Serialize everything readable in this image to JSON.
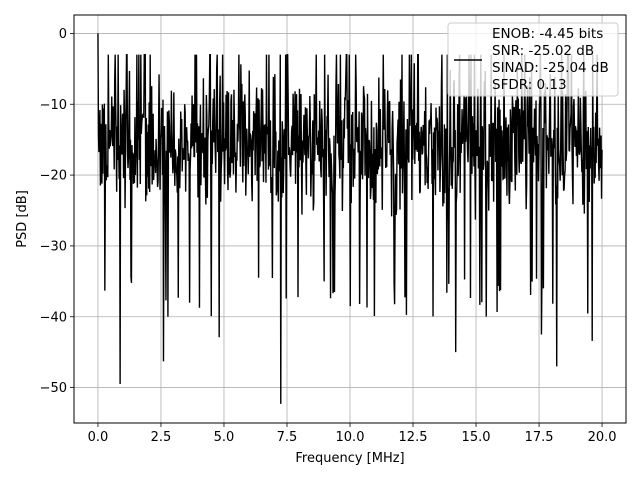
{
  "chart_data": {
    "type": "line",
    "title": "",
    "xlabel": "Frequency [MHz]",
    "ylabel": "PSD [dB]",
    "xlim": [
      -0.95,
      20.95
    ],
    "ylim": [
      -55.0,
      2.6
    ],
    "xticks": [
      0.0,
      2.5,
      5.0,
      7.5,
      10.0,
      12.5,
      15.0,
      17.5,
      20.0
    ],
    "xtick_labels": [
      "0.0",
      "2.5",
      "5.0",
      "7.5",
      "10.0",
      "12.5",
      "15.0",
      "17.5",
      "20.0"
    ],
    "yticks": [
      0,
      -10,
      -20,
      -30,
      -40,
      -50
    ],
    "ytick_labels": [
      "0",
      "−10",
      "−20",
      "−30",
      "−40",
      "−50"
    ],
    "grid": true,
    "legend_position": "top-right",
    "legend": {
      "entries": [
        "ENOB: -4.45 bits",
        "SNR: -25.02 dB",
        "SINAD: -25.04 dB",
        "SFDR: 0.13"
      ]
    },
    "series": [
      {
        "color": "#000000",
        "points_count": 1024,
        "x_range": [
          0.0,
          20.0
        ],
        "peak": {
          "x": 0.0,
          "y": 0.0
        },
        "notable_dips": [
          {
            "x": 0.88,
            "y": -49.5
          },
          {
            "x": 2.6,
            "y": -46.3
          },
          {
            "x": 4.8,
            "y": -42.9
          },
          {
            "x": 7.25,
            "y": -52.3
          },
          {
            "x": 10.0,
            "y": -38.5
          },
          {
            "x": 14.2,
            "y": -45.0
          },
          {
            "x": 17.6,
            "y": -42.5
          },
          {
            "x": 18.2,
            "y": -47.0
          },
          {
            "x": 19.6,
            "y": -43.4
          }
        ],
        "typical_band": [
          -31.0,
          -5.0
        ]
      }
    ]
  }
}
